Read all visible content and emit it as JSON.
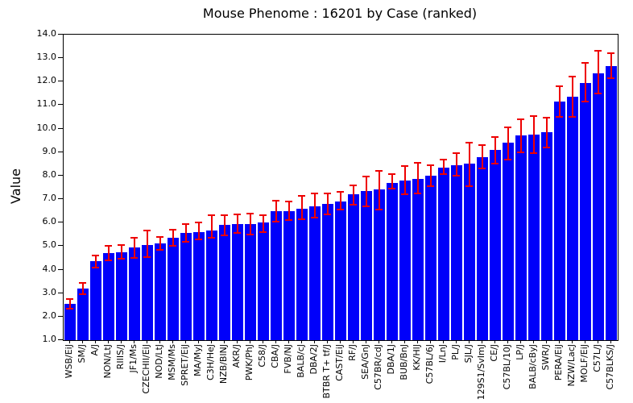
{
  "page": {
    "background": "#ffffff"
  },
  "chart_data": {
    "type": "bar",
    "title": "Mouse Phenome : 16201 by Case (ranked)",
    "ylabel": "Value",
    "xlabel": "",
    "ylim": [
      1.0,
      14.0
    ],
    "ytick_labels": [
      "1.0",
      "2.0",
      "3.0",
      "4.0",
      "5.0",
      "6.0",
      "7.0",
      "8.0",
      "9.0",
      "10.0",
      "11.0",
      "12.0",
      "13.0",
      "14.0"
    ],
    "grid": false,
    "legend": "none",
    "bar_color": "#0000fa",
    "error_color": "#ee0000",
    "frame_color": "#000000",
    "categories": [
      "WSB/EiJ",
      "SM/J",
      "A/J",
      "NON/LtJ",
      "RIIIS/J",
      "JF1/Ms",
      "CZECHII/EiJ",
      "NOD/LtJ",
      "MSM/Ms",
      "SPRET/EiJ",
      "MA/MyJ",
      "C3H/HeJ",
      "NZB/BlNJ",
      "AKR/J",
      "PWK/PhJ",
      "C58/J",
      "CBA/J",
      "FVB/NJ",
      "BALB/cJ",
      "DBA/2J",
      "BTBR T+ tf/J",
      "CAST/EiJ",
      "RF/J",
      "SEA/GnJ",
      "C57BR/cdJ",
      "DBA/1J",
      "BUB/BnJ",
      "KK/HlJ",
      "C57BL/6J",
      "I/LnJ",
      "PL/J",
      "SJL/J",
      "129S1/SvImJ",
      "CE/J",
      "C57BL/10J",
      "LP/J",
      "BALB/cByJ",
      "SWR/J",
      "PERA/EiJ",
      "NZW/LacJ",
      "MOLF/EiJ",
      "C57L/J",
      "C57BLKS/J"
    ],
    "values": [
      2.55,
      3.2,
      4.35,
      4.7,
      4.75,
      4.95,
      5.05,
      5.1,
      5.35,
      5.55,
      5.6,
      5.65,
      5.9,
      5.95,
      5.95,
      6.0,
      6.5,
      6.5,
      6.6,
      6.7,
      6.8,
      6.9,
      7.2,
      7.35,
      7.4,
      7.7,
      7.8,
      7.85,
      8.0,
      8.35,
      8.45,
      8.5,
      8.8,
      9.1,
      9.4,
      9.7,
      9.75,
      9.85,
      11.15,
      11.35,
      11.95,
      12.35,
      12.65
    ],
    "error_low": [
      2.35,
      2.95,
      4.1,
      4.4,
      4.45,
      4.5,
      4.55,
      4.85,
      5.0,
      5.2,
      5.3,
      5.35,
      5.45,
      5.55,
      5.5,
      5.6,
      6.05,
      6.1,
      6.15,
      6.2,
      6.35,
      6.55,
      6.75,
      6.7,
      6.55,
      7.45,
      7.2,
      7.25,
      7.55,
      8.05,
      8.0,
      7.55,
      8.3,
      8.5,
      8.7,
      9.0,
      8.95,
      9.2,
      10.5,
      10.5,
      11.15,
      11.5,
      12.15
    ],
    "error_high": [
      2.75,
      3.45,
      4.6,
      5.0,
      5.05,
      5.35,
      5.65,
      5.4,
      5.7,
      5.95,
      6.0,
      6.3,
      6.3,
      6.35,
      6.4,
      6.3,
      6.95,
      6.9,
      7.15,
      7.25,
      7.25,
      7.3,
      7.6,
      7.95,
      8.2,
      8.05,
      8.4,
      8.55,
      8.45,
      8.7,
      8.95,
      9.4,
      9.3,
      9.65,
      10.05,
      10.4,
      10.55,
      10.45,
      11.8,
      12.2,
      12.8,
      13.3,
      13.2
    ]
  }
}
